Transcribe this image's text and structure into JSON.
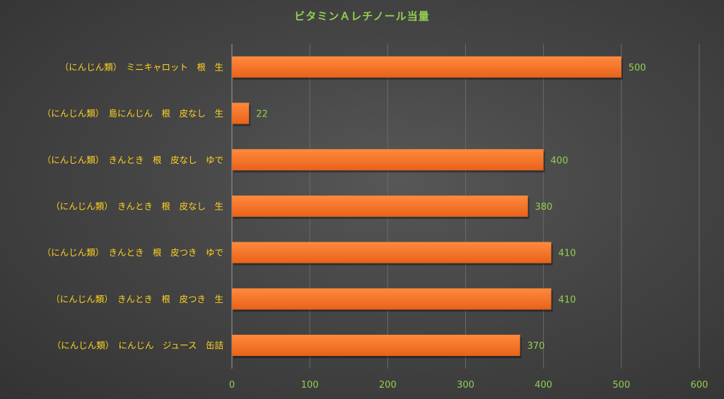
{
  "chart_data": {
    "type": "bar",
    "orientation": "horizontal",
    "title": "ビタミンＡレチノール当量",
    "categories": [
      "（にんじん類）　ミニキャロット　根　生",
      "（にんじん類）　島にんじん　根　皮なし　生",
      "（にんじん類）　きんとき　根　皮なし　ゆで",
      "（にんじん類）　きんとき　根　皮なし　生",
      "（にんじん類）　きんとき　根　皮つき　ゆで",
      "（にんじん類）　きんとき　根　皮つき　生",
      "（にんじん類）　にんじん　ジュース　缶詰"
    ],
    "values": [
      500,
      22,
      400,
      380,
      410,
      410,
      370
    ],
    "xlim": [
      0,
      600
    ],
    "xticks": [
      0,
      100,
      200,
      300,
      400,
      500,
      600
    ],
    "grid": true,
    "legend": "none",
    "colors": {
      "bar_top": "#ff8a3d",
      "bar_bottom": "#e8621a",
      "category_text": "#ffd21f",
      "value_text": "#92d050",
      "grid": "#6a6a6a"
    }
  }
}
